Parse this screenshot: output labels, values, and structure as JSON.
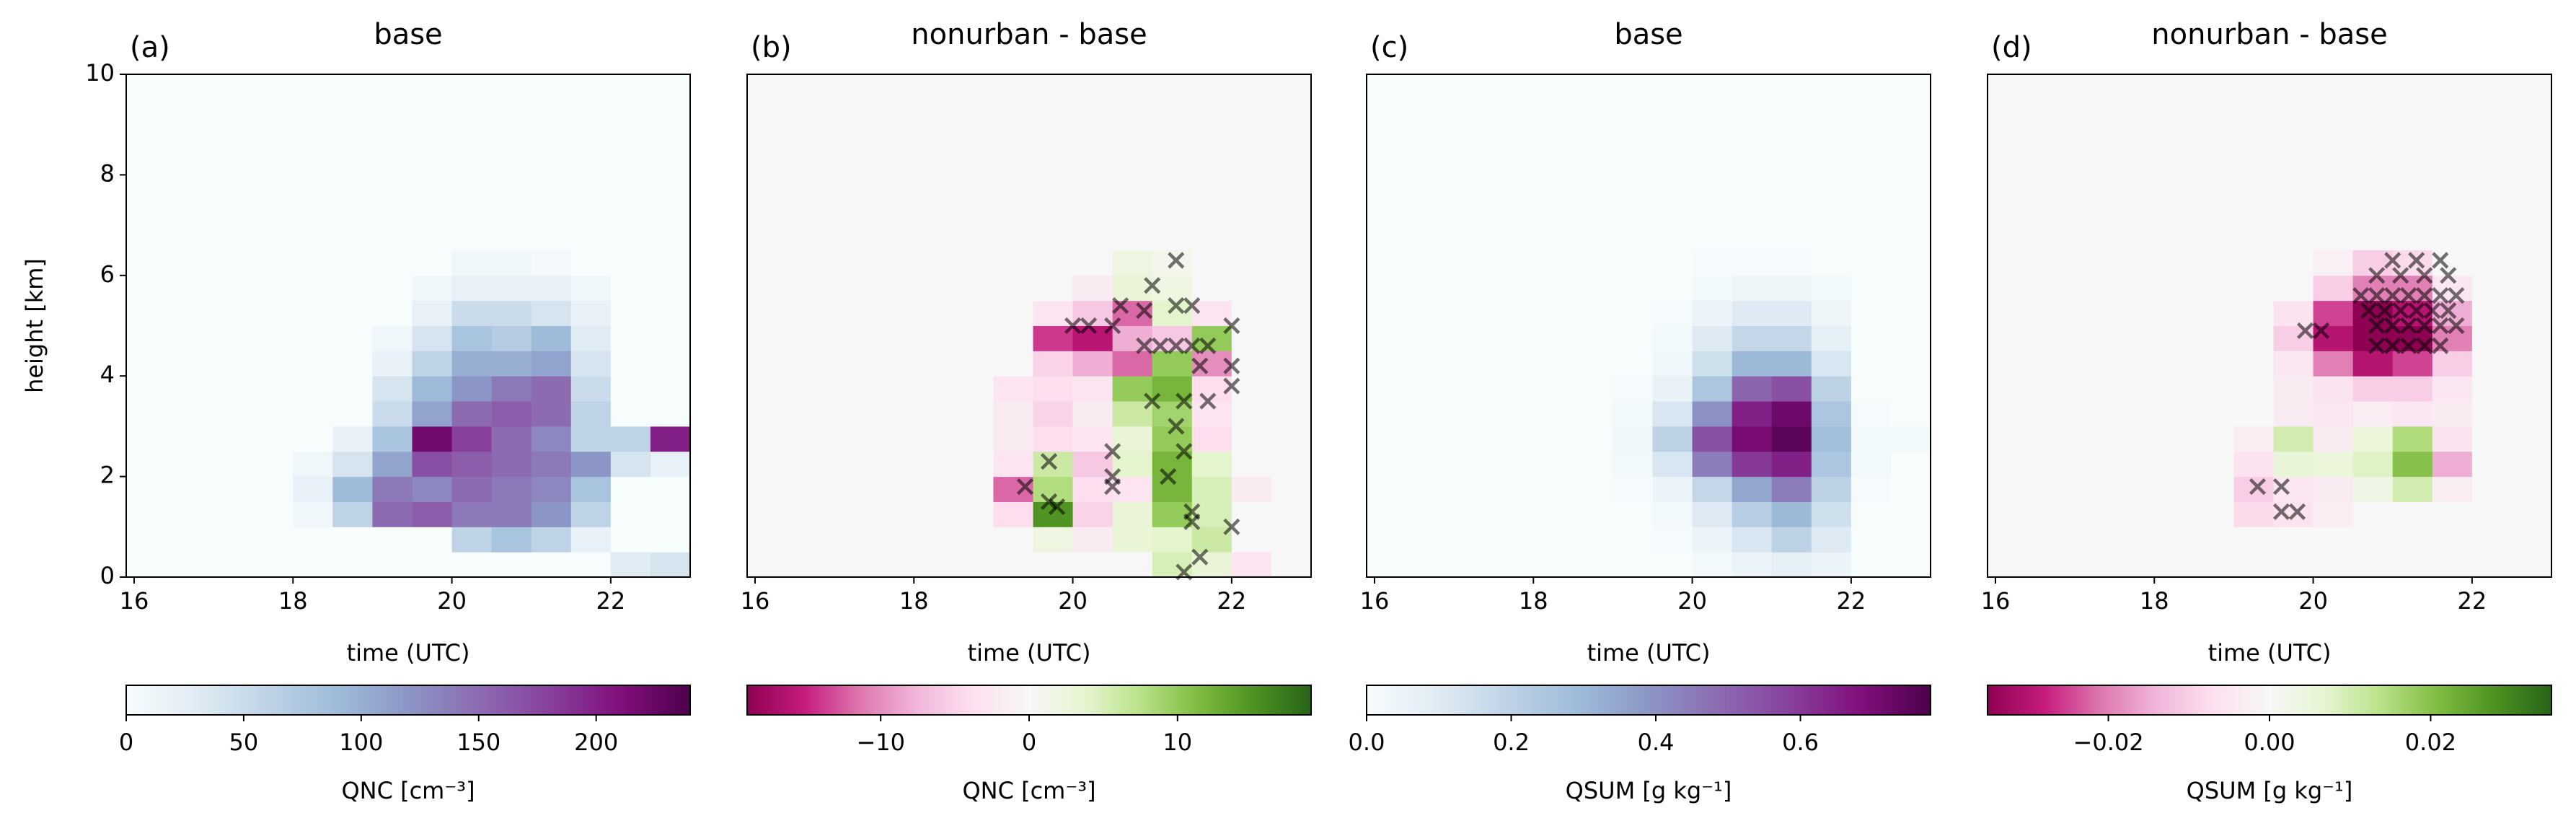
{
  "chart_data": [
    {
      "type": "heatmap",
      "label": "(a)",
      "title": "base",
      "xlabel": "time (UTC)",
      "ylabel": "height [km]",
      "x": [
        18.25,
        18.75,
        19.25,
        19.75,
        20.25,
        20.75,
        21.25,
        21.75,
        22.25,
        22.75
      ],
      "y": [
        0.25,
        0.75,
        1.25,
        1.75,
        2.25,
        2.75,
        3.25,
        3.75,
        4.25,
        4.75,
        5.25,
        5.75,
        6.25
      ],
      "z": [
        [
          0,
          0,
          0,
          0,
          0,
          0,
          0,
          0,
          30,
          40
        ],
        [
          0,
          0,
          0,
          0,
          60,
          80,
          60,
          20,
          0,
          0
        ],
        [
          10,
          60,
          150,
          160,
          140,
          140,
          120,
          60,
          0,
          0
        ],
        [
          20,
          90,
          140,
          130,
          150,
          140,
          130,
          80,
          0,
          0
        ],
        [
          10,
          40,
          110,
          170,
          160,
          150,
          140,
          120,
          40,
          20
        ],
        [
          0,
          20,
          80,
          220,
          180,
          150,
          130,
          60,
          60,
          200
        ],
        [
          0,
          0,
          50,
          110,
          150,
          160,
          150,
          60,
          0,
          0
        ],
        [
          0,
          0,
          40,
          90,
          120,
          140,
          150,
          50,
          0,
          0
        ],
        [
          0,
          0,
          20,
          60,
          100,
          100,
          110,
          40,
          0,
          0
        ],
        [
          0,
          0,
          10,
          40,
          80,
          70,
          90,
          30,
          0,
          0
        ],
        [
          0,
          0,
          0,
          20,
          50,
          50,
          40,
          20,
          0,
          0
        ],
        [
          0,
          0,
          0,
          10,
          20,
          20,
          20,
          10,
          0,
          0
        ],
        [
          0,
          0,
          0,
          0,
          10,
          10,
          5,
          0,
          0,
          0
        ]
      ],
      "xlim": [
        15.9,
        23.0
      ],
      "ylim": [
        0,
        10
      ],
      "xticks": [
        16,
        18,
        20,
        22
      ],
      "yticks": [
        0,
        2,
        4,
        6,
        8,
        10
      ],
      "colormap": [
        "#f7fcfd",
        "#e0ecf4",
        "#bfd3e6",
        "#9ebcda",
        "#8c96c6",
        "#8c6bb1",
        "#88419d",
        "#810f7c",
        "#4d004b"
      ],
      "clim": [
        0,
        240
      ],
      "colorbar": {
        "label": "QNC [cm⁻³]",
        "ticks": [
          0,
          50,
          100,
          150,
          200
        ]
      }
    },
    {
      "type": "heatmap",
      "label": "(b)",
      "title": "nonurban - base",
      "xlabel": "time (UTC)",
      "x": [
        18.25,
        18.75,
        19.25,
        19.75,
        20.25,
        20.75,
        21.25,
        21.75,
        22.25,
        22.75
      ],
      "y": [
        0.25,
        0.75,
        1.25,
        1.75,
        2.25,
        2.75,
        3.25,
        3.75,
        4.25,
        4.75,
        5.25,
        5.75,
        6.25
      ],
      "z": [
        [
          0,
          0,
          0,
          0,
          0,
          0,
          5,
          3,
          -3,
          0
        ],
        [
          0,
          0,
          0,
          2,
          -2,
          3,
          4,
          6,
          0,
          0
        ],
        [
          0,
          0,
          -4,
          15,
          -5,
          3,
          10,
          5,
          0,
          0
        ],
        [
          0,
          0,
          -12,
          8,
          -4,
          -3,
          12,
          5,
          -2,
          0
        ],
        [
          0,
          0,
          -3,
          6,
          -6,
          4,
          12,
          4,
          0,
          0
        ],
        [
          0,
          0,
          -2,
          -4,
          -3,
          3,
          10,
          -4,
          0,
          0
        ],
        [
          0,
          0,
          -2,
          -5,
          -2,
          6,
          9,
          -3,
          0,
          0
        ],
        [
          0,
          0,
          -3,
          -4,
          -3,
          10,
          12,
          -4,
          0,
          0
        ],
        [
          0,
          0,
          0,
          -5,
          -8,
          -12,
          10,
          -10,
          0,
          0
        ],
        [
          0,
          0,
          0,
          -14,
          -16,
          -8,
          -6,
          10,
          0,
          0
        ],
        [
          0,
          0,
          0,
          -3,
          -6,
          -12,
          4,
          -3,
          0,
          0
        ],
        [
          0,
          0,
          0,
          0,
          -2,
          3,
          2,
          0,
          0,
          0
        ],
        [
          0,
          0,
          0,
          0,
          0,
          2,
          1,
          0,
          0,
          0
        ]
      ],
      "markers": {
        "color": "#000000",
        "x": [
          19.4,
          19.7,
          19.8,
          19.7,
          20.5,
          20.5,
          20.5,
          21.2,
          21.5,
          21.5,
          21.6,
          21.4,
          22.0,
          20.0,
          20.2,
          20.5,
          20.6,
          20.9,
          21.0,
          21.3,
          21.3,
          21.5,
          20.9,
          21.1,
          21.3,
          21.5,
          21.7,
          21.6,
          22.0,
          22.0,
          22.0,
          21.0,
          21.4,
          21.4,
          21.3,
          21.7
        ],
        "y": [
          1.8,
          1.5,
          1.4,
          2.3,
          2.5,
          2.0,
          1.8,
          2.0,
          1.3,
          1.1,
          0.4,
          0.1,
          1.0,
          5.0,
          5.0,
          5.0,
          5.4,
          5.3,
          5.8,
          6.3,
          5.4,
          5.4,
          4.6,
          4.6,
          4.6,
          4.6,
          4.6,
          4.2,
          5.0,
          4.2,
          3.8,
          3.5,
          3.5,
          2.5,
          3.0,
          3.5
        ]
      },
      "xlim": [
        15.9,
        23.0
      ],
      "ylim": [
        0,
        10
      ],
      "xticks": [
        16,
        18,
        20,
        22
      ],
      "colormap": [
        "#8e0152",
        "#c51b7d",
        "#de77ae",
        "#f1b6da",
        "#fde0ef",
        "#f7f7f7",
        "#e6f5d0",
        "#b8e186",
        "#7fbc41",
        "#4d9221",
        "#276419"
      ],
      "clim": [
        -19,
        19
      ],
      "colorbar": {
        "label": "QNC [cm⁻³]",
        "ticks": [
          {
            "value": -10,
            "label": "−10"
          },
          0,
          10
        ]
      }
    },
    {
      "type": "heatmap",
      "label": "(c)",
      "title": "base",
      "xlabel": "time (UTC)",
      "x": [
        18.25,
        18.75,
        19.25,
        19.75,
        20.25,
        20.75,
        21.25,
        21.75,
        22.25,
        22.75
      ],
      "y": [
        0.25,
        0.75,
        1.25,
        1.75,
        2.25,
        2.75,
        3.25,
        3.75,
        4.25,
        4.75,
        5.25,
        5.75,
        6.25
      ],
      "z": [
        [
          0,
          0,
          0,
          0,
          0.02,
          0.05,
          0.08,
          0.05,
          0,
          0
        ],
        [
          0,
          0,
          0,
          0.01,
          0.05,
          0.12,
          0.2,
          0.1,
          0,
          0
        ],
        [
          0,
          0,
          0,
          0.02,
          0.1,
          0.22,
          0.3,
          0.15,
          0,
          0
        ],
        [
          0,
          0,
          0.01,
          0.05,
          0.18,
          0.35,
          0.45,
          0.2,
          0.01,
          0
        ],
        [
          0,
          0,
          0.02,
          0.12,
          0.45,
          0.6,
          0.65,
          0.25,
          0.02,
          0
        ],
        [
          0,
          0,
          0.03,
          0.2,
          0.55,
          0.7,
          0.75,
          0.28,
          0.02,
          0.02
        ],
        [
          0,
          0,
          0.02,
          0.12,
          0.4,
          0.65,
          0.72,
          0.25,
          0.01,
          0
        ],
        [
          0,
          0,
          0.01,
          0.06,
          0.25,
          0.5,
          0.55,
          0.2,
          0,
          0
        ],
        [
          0,
          0,
          0,
          0.03,
          0.15,
          0.3,
          0.3,
          0.12,
          0,
          0
        ],
        [
          0,
          0,
          0,
          0.02,
          0.1,
          0.18,
          0.18,
          0.08,
          0,
          0
        ],
        [
          0,
          0,
          0,
          0.01,
          0.05,
          0.1,
          0.1,
          0.04,
          0,
          0
        ],
        [
          0,
          0,
          0,
          0,
          0.02,
          0.04,
          0.04,
          0.02,
          0,
          0
        ],
        [
          0,
          0,
          0,
          0,
          0.01,
          0.01,
          0.01,
          0,
          0,
          0
        ]
      ],
      "xlim": [
        15.9,
        23.0
      ],
      "ylim": [
        0,
        10
      ],
      "xticks": [
        16,
        18,
        20,
        22
      ],
      "colormap": [
        "#f7fcfd",
        "#e0ecf4",
        "#bfd3e6",
        "#9ebcda",
        "#8c96c6",
        "#8c6bb1",
        "#88419d",
        "#810f7c",
        "#4d004b"
      ],
      "clim": [
        0,
        0.78
      ],
      "colorbar": {
        "label": "QSUM [g kg⁻¹]",
        "ticks": [
          {
            "value": 0,
            "label": "0.0"
          },
          0.2,
          0.4,
          0.6
        ]
      }
    },
    {
      "type": "heatmap",
      "label": "(d)",
      "title": "nonurban - base",
      "xlabel": "time (UTC)",
      "x": [
        18.25,
        18.75,
        19.25,
        19.75,
        20.25,
        20.75,
        21.25,
        21.75,
        22.25,
        22.75
      ],
      "y": [
        0.25,
        0.75,
        1.25,
        1.75,
        2.25,
        2.75,
        3.25,
        3.75,
        4.25,
        4.75,
        5.25,
        5.75,
        6.25
      ],
      "z": [
        [
          0,
          0,
          0,
          0,
          0,
          0,
          0,
          0,
          0,
          0
        ],
        [
          0,
          0,
          0,
          0,
          0,
          0,
          0,
          0,
          0,
          0
        ],
        [
          0,
          0,
          -0.008,
          -0.006,
          -0.003,
          0,
          0,
          0,
          0,
          0
        ],
        [
          0,
          0,
          -0.01,
          -0.005,
          -0.004,
          0.003,
          0.01,
          -0.003,
          0,
          0
        ],
        [
          0,
          0,
          -0.006,
          0.006,
          0.005,
          0.008,
          0.02,
          -0.015,
          0,
          0
        ],
        [
          0,
          0,
          -0.003,
          0.01,
          -0.004,
          0.005,
          0.015,
          -0.006,
          0,
          0
        ],
        [
          0,
          0,
          0,
          -0.004,
          -0.005,
          -0.003,
          -0.005,
          -0.004,
          0,
          0
        ],
        [
          0,
          0,
          0,
          -0.004,
          -0.006,
          -0.01,
          -0.01,
          -0.005,
          0,
          0
        ],
        [
          0,
          0,
          0,
          -0.005,
          -0.02,
          -0.03,
          -0.025,
          -0.01,
          0,
          0
        ],
        [
          0,
          0,
          0,
          -0.01,
          -0.03,
          -0.035,
          -0.035,
          -0.02,
          0,
          0
        ],
        [
          0,
          0,
          0,
          -0.006,
          -0.025,
          -0.035,
          -0.03,
          -0.015,
          0,
          0
        ],
        [
          0,
          0,
          0,
          0,
          -0.01,
          -0.02,
          -0.02,
          -0.005,
          0,
          0
        ],
        [
          0,
          0,
          0,
          0,
          -0.002,
          -0.01,
          -0.008,
          0,
          0,
          0
        ]
      ],
      "markers": {
        "color": "#000000",
        "x": [
          19.3,
          19.6,
          19.6,
          19.8,
          19.9,
          20.1,
          21.0,
          21.3,
          21.6,
          20.8,
          21.1,
          21.4,
          21.7,
          20.6,
          20.8,
          21.0,
          21.2,
          21.4,
          21.6,
          21.8,
          20.7,
          20.9,
          21.1,
          21.3,
          21.5,
          21.7,
          20.8,
          21.0,
          21.2,
          21.4,
          21.6,
          21.8,
          20.8,
          21.0,
          21.2,
          21.4,
          21.6
        ],
        "y": [
          1.8,
          1.8,
          1.3,
          1.3,
          4.9,
          4.9,
          6.3,
          6.3,
          6.3,
          6.0,
          6.0,
          6.0,
          6.0,
          5.6,
          5.6,
          5.6,
          5.6,
          5.6,
          5.6,
          5.6,
          5.3,
          5.3,
          5.3,
          5.3,
          5.3,
          5.3,
          5.0,
          5.0,
          5.0,
          5.0,
          5.0,
          5.0,
          4.6,
          4.6,
          4.6,
          4.6,
          4.6
        ]
      },
      "xlim": [
        15.9,
        23.0
      ],
      "ylim": [
        0,
        10
      ],
      "xticks": [
        16,
        18,
        20,
        22
      ],
      "colormap": [
        "#8e0152",
        "#c51b7d",
        "#de77ae",
        "#f1b6da",
        "#fde0ef",
        "#f7f7f7",
        "#e6f5d0",
        "#b8e186",
        "#7fbc41",
        "#4d9221",
        "#276419"
      ],
      "clim": [
        -0.035,
        0.035
      ],
      "colorbar": {
        "label": "QSUM [g kg⁻¹]",
        "ticks": [
          {
            "value": -0.02,
            "label": "−0.02"
          },
          {
            "value": 0,
            "label": "0.00"
          },
          0.02
        ]
      }
    }
  ]
}
